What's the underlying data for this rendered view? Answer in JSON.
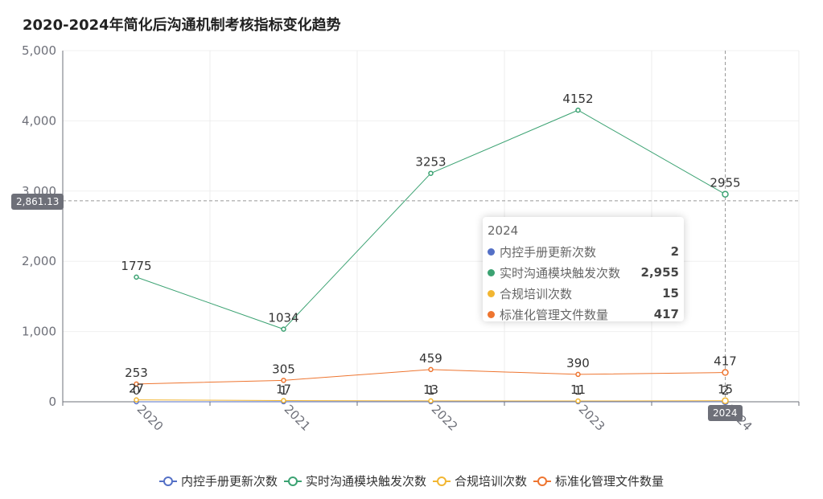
{
  "title": "2020-2024年简化后沟通机制考核指标变化趋势",
  "chart_data": {
    "type": "line",
    "categories": [
      "2020",
      "2021",
      "2022",
      "2023",
      "2024"
    ],
    "x_tick_labels": [
      "2020",
      "2021",
      "2022",
      "2023",
      "2024"
    ],
    "y_ticks": [
      "0",
      "1,000",
      "2,000",
      "3,000",
      "4,000",
      "5,000"
    ],
    "ylim": [
      0,
      5000
    ],
    "grid": true,
    "legend_position": "bottom",
    "series": [
      {
        "name": "内控手册更新次数",
        "values": [
          0,
          1,
          1,
          1,
          2
        ],
        "labels": [
          "0",
          "1",
          "1",
          "1",
          "2"
        ],
        "color": "#5470c6"
      },
      {
        "name": "实时沟通模块触发次数",
        "values": [
          1775,
          1034,
          3253,
          4152,
          2955
        ],
        "labels": [
          "1775",
          "1034",
          "3253",
          "4152",
          "2955"
        ],
        "color": "#3ba272"
      },
      {
        "name": "合规培训次数",
        "values": [
          27,
          17,
          13,
          11,
          15
        ],
        "labels": [
          "27",
          "17",
          "13",
          "11",
          "15"
        ],
        "color": "#f2b632"
      },
      {
        "name": "标准化管理文件数量",
        "values": [
          253,
          305,
          459,
          390,
          417
        ],
        "labels": [
          "253",
          "305",
          "459",
          "390",
          "417"
        ],
        "color": "#ee7530"
      }
    ]
  },
  "tooltip": {
    "title": "2024",
    "rows": [
      {
        "name": "内控手册更新次数",
        "value": "2",
        "color": "#5470c6"
      },
      {
        "name": "实时沟通模块触发次数",
        "value": "2,955",
        "color": "#3ba272"
      },
      {
        "name": "合规培训次数",
        "value": "15",
        "color": "#f2b632"
      },
      {
        "name": "标准化管理文件数量",
        "value": "417",
        "color": "#ee7530"
      }
    ]
  },
  "crosshair": {
    "y_value": 2861.13,
    "y_label": "2,861.13",
    "x_label": "2024"
  }
}
